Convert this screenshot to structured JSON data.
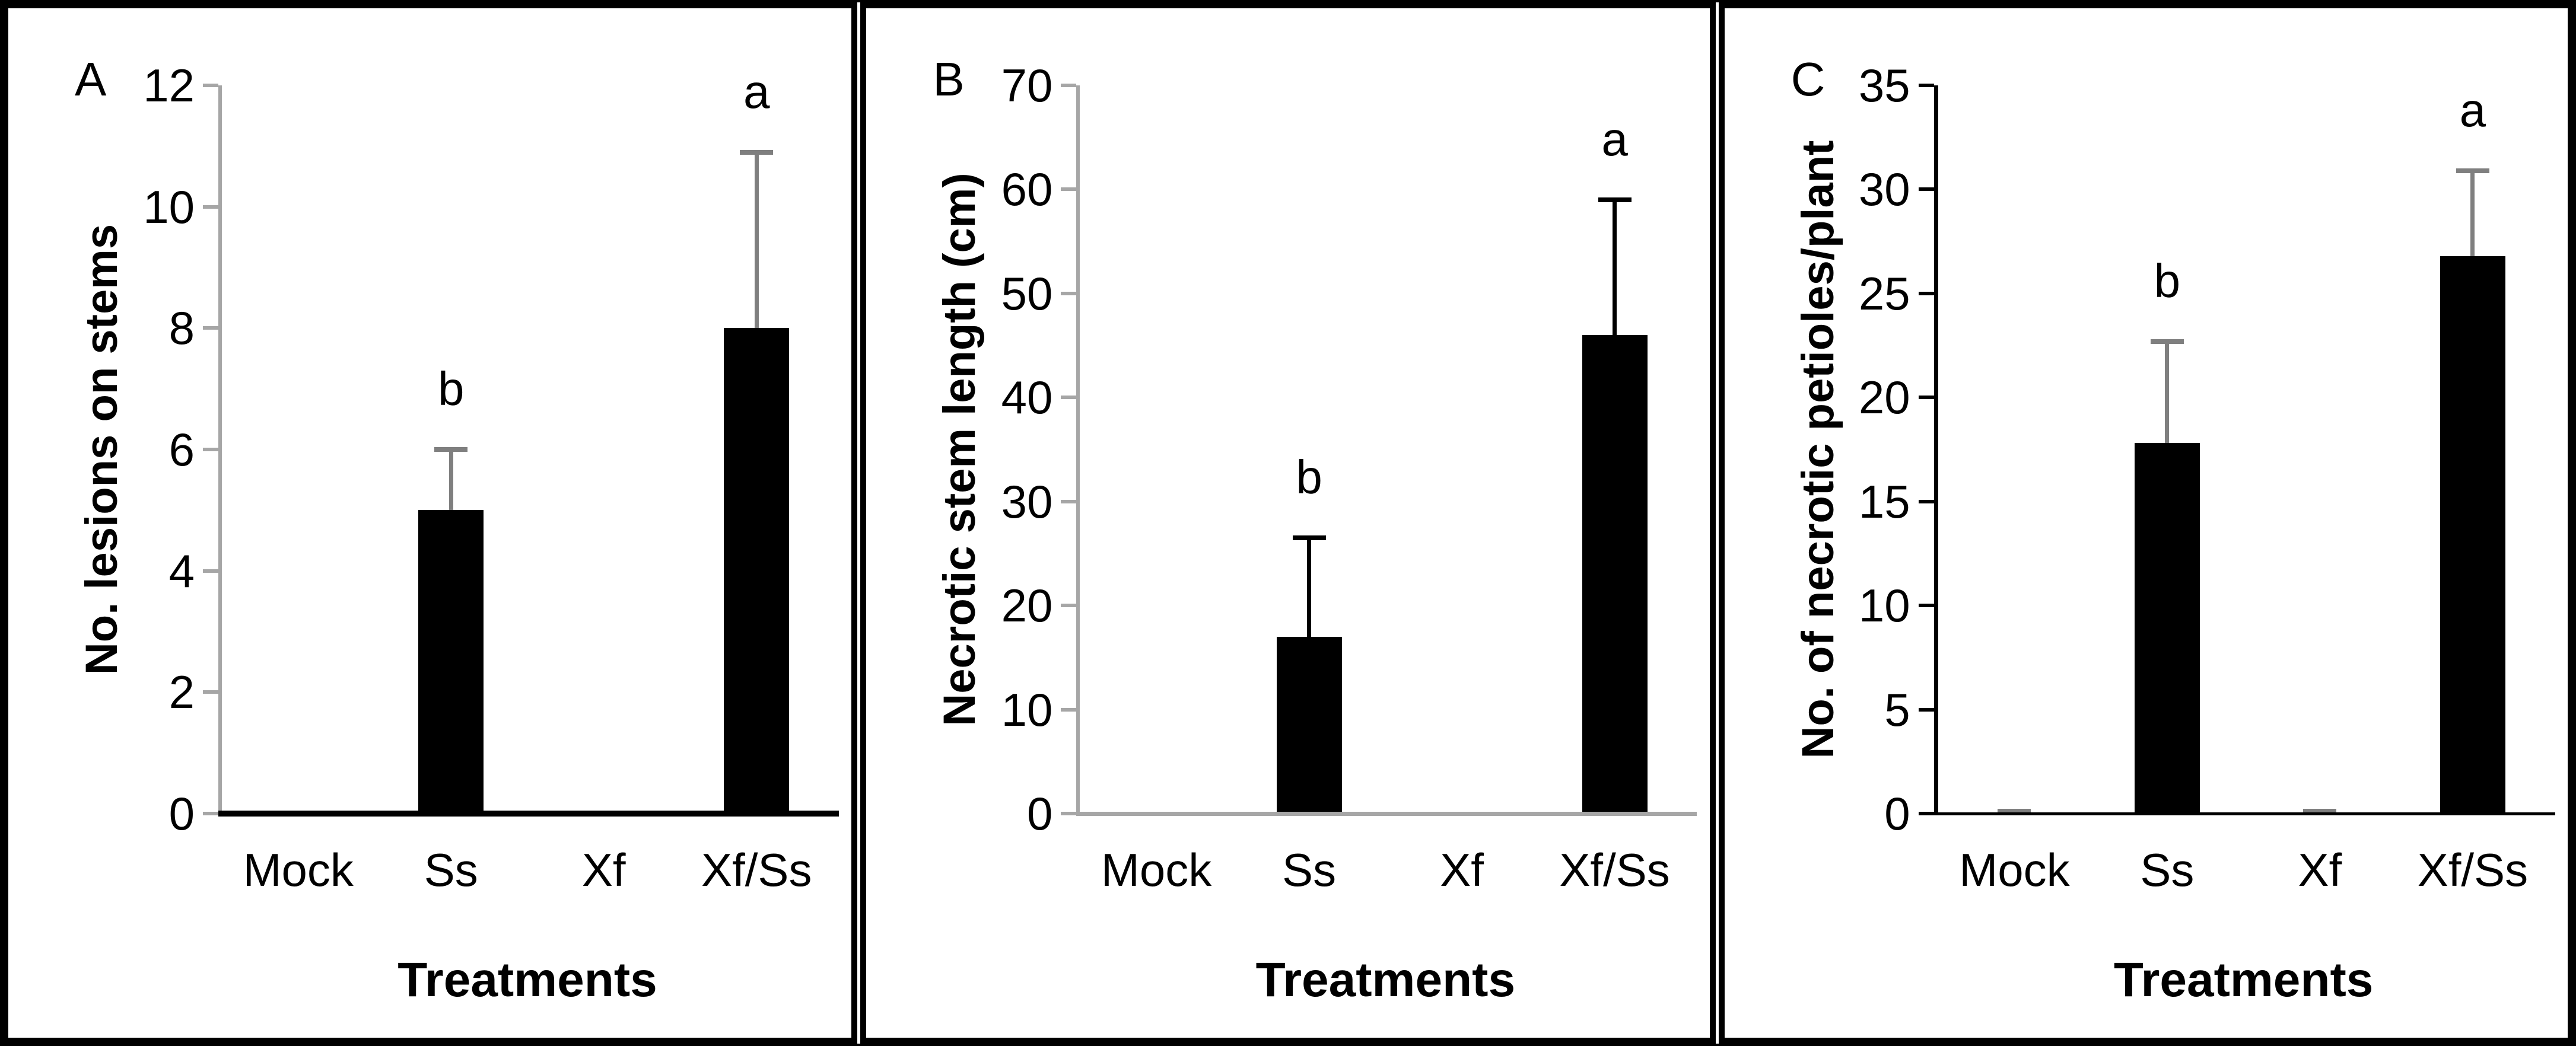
{
  "figure": {
    "background_color": "#ffffff",
    "frame_color": "#000000",
    "bar_color": "#000000"
  },
  "chart_data": [
    {
      "type": "bar",
      "panel_label": "A",
      "title": "",
      "ylabel": "No. lesions on stems",
      "xlabel": "Treatments",
      "categories": [
        "Mock",
        "Ss",
        "Xf",
        "Xf/Ss"
      ],
      "values": [
        0,
        5,
        0,
        8
      ],
      "error_plus": [
        0,
        1,
        0,
        2.9
      ],
      "sig_labels": [
        "",
        "b",
        "",
        "a"
      ],
      "ylim": [
        0,
        12
      ],
      "ytick_step": 2,
      "yticks": [
        0,
        2,
        4,
        6,
        8,
        10,
        12
      ],
      "grid": "off",
      "legend": "none",
      "bar_color": "#000000",
      "error_color": "#7f7f7f",
      "y_axis_color": "#a6a6a6",
      "x_axis_color": "#000000",
      "tick_color": "#a6a6a6",
      "x_axis_width": 10,
      "y_axis_width": 6,
      "show_zero_error_caps": false
    },
    {
      "type": "bar",
      "panel_label": "B",
      "title": "",
      "ylabel": "Necrotic stem length (cm)",
      "xlabel": "Treatments",
      "categories": [
        "Mock",
        "Ss",
        "Xf",
        "Xf/Ss"
      ],
      "values": [
        0,
        17,
        0,
        46
      ],
      "error_plus": [
        0,
        9.5,
        0,
        13
      ],
      "sig_labels": [
        "",
        "b",
        "",
        "a"
      ],
      "ylim": [
        0,
        70
      ],
      "ytick_step": 10,
      "yticks": [
        0,
        10,
        20,
        30,
        40,
        50,
        60,
        70
      ],
      "grid": "off",
      "legend": "none",
      "bar_color": "#000000",
      "error_color": "#000000",
      "y_axis_color": "#a6a6a6",
      "x_axis_color": "#a6a6a6",
      "tick_color": "#a6a6a6",
      "x_axis_width": 7,
      "y_axis_width": 6,
      "show_zero_error_caps": false
    },
    {
      "type": "bar",
      "panel_label": "C",
      "title": "",
      "ylabel": "No. of necrotic petioles/plant",
      "xlabel": "Treatments",
      "categories": [
        "Mock",
        "Ss",
        "Xf",
        "Xf/Ss"
      ],
      "values": [
        0,
        17.8,
        0,
        26.8
      ],
      "error_plus": [
        0,
        4.9,
        0,
        4.1
      ],
      "sig_labels": [
        "",
        "b",
        "",
        "a"
      ],
      "ylim": [
        0,
        35
      ],
      "ytick_step": 5,
      "yticks": [
        0,
        5,
        10,
        15,
        20,
        25,
        30,
        35
      ],
      "grid": "off",
      "legend": "none",
      "bar_color": "#000000",
      "error_color": "#7f7f7f",
      "y_axis_color": "#000000",
      "x_axis_color": "#000000",
      "tick_color": "#000000",
      "x_axis_width": 5,
      "y_axis_width": 7,
      "show_zero_error_caps": true
    }
  ]
}
